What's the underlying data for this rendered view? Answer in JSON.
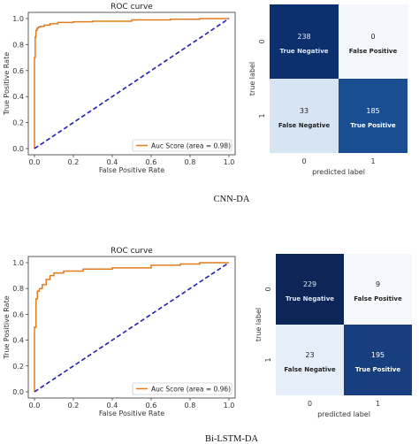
{
  "chart_data": [
    {
      "id": "roc-cnn",
      "type": "line",
      "title": "ROC curve",
      "xlabel": "False Positive Rate",
      "ylabel": "True Positive Rate",
      "xlim": [
        0,
        1
      ],
      "ylim": [
        0,
        1
      ],
      "xticks": [
        "0.0",
        "0.2",
        "0.4",
        "0.6",
        "0.8",
        "1.0"
      ],
      "yticks": [
        "0.0",
        "0.2",
        "0.4",
        "0.6",
        "0.8",
        "1.0"
      ],
      "legend_position": "lower-right",
      "series": [
        {
          "name": "Auc Score (area = 0.98)",
          "color": "#E07B1F",
          "x": [
            0,
            0,
            0.004,
            0.004,
            0.008,
            0.008,
            0.013,
            0.013,
            0.02,
            0.02,
            0.03,
            0.03,
            0.05,
            0.05,
            0.08,
            0.08,
            0.12,
            0.12,
            0.2,
            0.2,
            0.3,
            0.3,
            0.5,
            0.5,
            0.7,
            0.7,
            0.85,
            0.85,
            1.0
          ],
          "y": [
            0,
            0.7,
            0.7,
            0.86,
            0.86,
            0.91,
            0.91,
            0.925,
            0.925,
            0.935,
            0.935,
            0.94,
            0.94,
            0.95,
            0.95,
            0.96,
            0.96,
            0.97,
            0.97,
            0.975,
            0.975,
            0.98,
            0.98,
            0.99,
            0.99,
            0.995,
            0.995,
            1.0,
            1.0
          ]
        },
        {
          "name": "",
          "color": "#1f1fb0",
          "style": "dashed",
          "x": [
            0,
            1
          ],
          "y": [
            0,
            1
          ]
        }
      ]
    },
    {
      "id": "cm-cnn",
      "type": "heatmap",
      "ylabel": "true label",
      "xlabel": "predicted label",
      "row_ticks": [
        "0",
        "1"
      ],
      "col_ticks": [
        "0",
        "1"
      ],
      "values": [
        [
          238,
          0
        ],
        [
          33,
          185
        ]
      ],
      "labels": [
        [
          "True Negative",
          "False Positive"
        ],
        [
          "False Negative",
          "True Positive"
        ]
      ]
    },
    {
      "id": "roc-bilstm",
      "type": "line",
      "title": "ROC curve",
      "xlabel": "False Positive Rate",
      "ylabel": "True Positive Rate",
      "xlim": [
        0,
        1
      ],
      "ylim": [
        0,
        1
      ],
      "xticks": [
        "0.0",
        "0.2",
        "0.4",
        "0.6",
        "0.8",
        "1.0"
      ],
      "yticks": [
        "0.0",
        "0.2",
        "0.4",
        "0.6",
        "0.8",
        "1.0"
      ],
      "legend_position": "lower-right",
      "series": [
        {
          "name": "Auc Score (area = 0.96)",
          "color": "#E07B1F",
          "x": [
            0,
            0,
            0.008,
            0.008,
            0.015,
            0.015,
            0.025,
            0.025,
            0.04,
            0.04,
            0.06,
            0.06,
            0.08,
            0.08,
            0.1,
            0.1,
            0.15,
            0.15,
            0.25,
            0.25,
            0.4,
            0.4,
            0.6,
            0.6,
            0.75,
            0.75,
            0.85,
            0.85,
            1.0
          ],
          "y": [
            0,
            0.5,
            0.5,
            0.72,
            0.72,
            0.78,
            0.78,
            0.8,
            0.8,
            0.83,
            0.83,
            0.87,
            0.87,
            0.9,
            0.9,
            0.92,
            0.92,
            0.935,
            0.935,
            0.95,
            0.95,
            0.96,
            0.96,
            0.98,
            0.98,
            0.99,
            0.99,
            1.0,
            1.0
          ]
        },
        {
          "name": "",
          "color": "#1f1fb0",
          "style": "dashed",
          "x": [
            0,
            1
          ],
          "y": [
            0,
            1
          ]
        }
      ]
    },
    {
      "id": "cm-bilstm",
      "type": "heatmap",
      "ylabel": "true label",
      "xlabel": "predicted label",
      "row_ticks": [
        "0",
        "1"
      ],
      "col_ticks": [
        "0",
        "1"
      ],
      "values": [
        [
          229,
          9
        ],
        [
          23,
          195
        ]
      ],
      "labels": [
        [
          "True Negative",
          "False Positive"
        ],
        [
          "False Negative",
          "True Positive"
        ]
      ]
    }
  ],
  "captions": {
    "top": "CNN-DA",
    "bottom": "Bi-LSTM-DA"
  }
}
